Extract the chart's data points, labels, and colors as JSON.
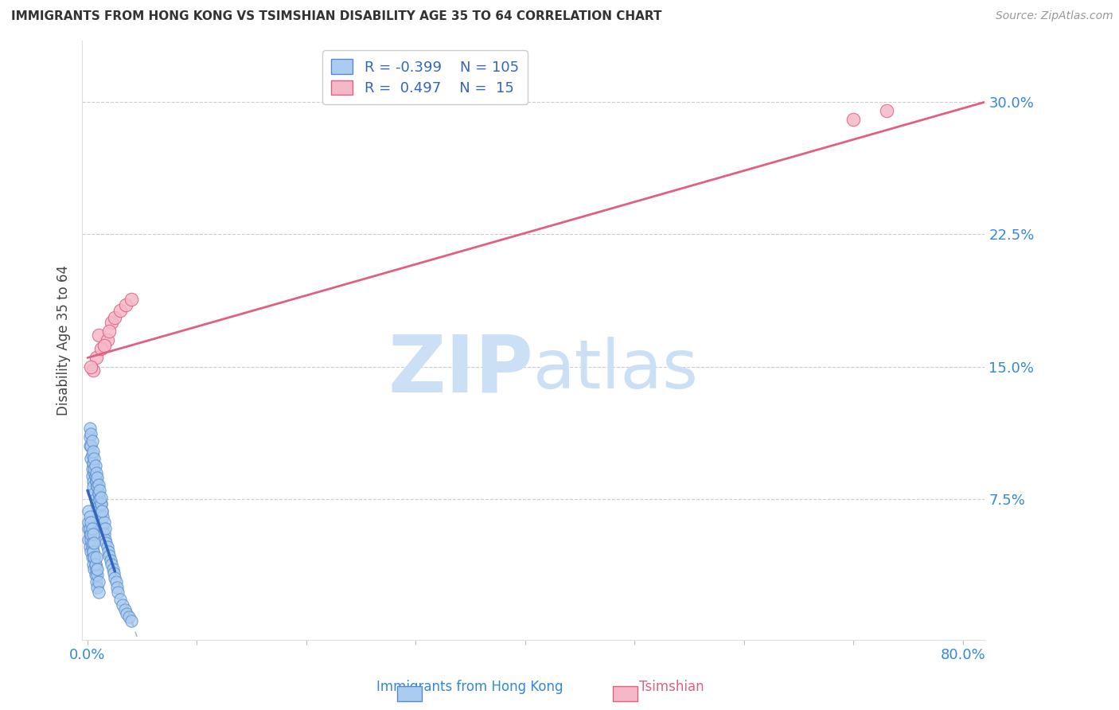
{
  "title": "IMMIGRANTS FROM HONG KONG VS TSIMSHIAN DISABILITY AGE 35 TO 64 CORRELATION CHART",
  "source": "Source: ZipAtlas.com",
  "xlabel_hk": "Immigrants from Hong Kong",
  "xlabel_ts": "Tsimshian",
  "ylabel": "Disability Age 35 to 64",
  "xlim": [
    -0.005,
    0.82
  ],
  "ylim": [
    -0.005,
    0.335
  ],
  "yticks_right": [
    0.075,
    0.15,
    0.225,
    0.3
  ],
  "ytick_labels_right": [
    "7.5%",
    "15.0%",
    "22.5%",
    "30.0%"
  ],
  "legend_r_hk": "-0.399",
  "legend_n_hk": "105",
  "legend_r_ts": "0.497",
  "legend_n_ts": "15",
  "color_hk_fill": "#aaccf0",
  "color_hk_edge": "#5588cc",
  "color_ts_fill": "#f5b8c8",
  "color_ts_edge": "#e06080",
  "color_hk_line": "#3366bb",
  "color_ts_line": "#e06080",
  "watermark_zip": "ZIP",
  "watermark_atlas": "atlas",
  "watermark_color": "#cce0f5",
  "hk_x": [
    0.002,
    0.003,
    0.004,
    0.004,
    0.005,
    0.005,
    0.005,
    0.006,
    0.006,
    0.007,
    0.007,
    0.008,
    0.008,
    0.009,
    0.009,
    0.01,
    0.01,
    0.011,
    0.011,
    0.012,
    0.012,
    0.013,
    0.013,
    0.014,
    0.014,
    0.015,
    0.015,
    0.016,
    0.016,
    0.017,
    0.018,
    0.019,
    0.02,
    0.021,
    0.022,
    0.023,
    0.024,
    0.025,
    0.026,
    0.027,
    0.028,
    0.03,
    0.032,
    0.034,
    0.036,
    0.038,
    0.04,
    0.002,
    0.002,
    0.003,
    0.003,
    0.004,
    0.004,
    0.005,
    0.005,
    0.006,
    0.006,
    0.007,
    0.007,
    0.008,
    0.008,
    0.009,
    0.009,
    0.01,
    0.01,
    0.011,
    0.011,
    0.012,
    0.012,
    0.013,
    0.001,
    0.001,
    0.002,
    0.002,
    0.003,
    0.003,
    0.004,
    0.004,
    0.005,
    0.005,
    0.006,
    0.006,
    0.007,
    0.007,
    0.008,
    0.008,
    0.009,
    0.009,
    0.01,
    0.01,
    0.001,
    0.001,
    0.002,
    0.002,
    0.003,
    0.003,
    0.004,
    0.004,
    0.005,
    0.005,
    0.006,
    0.006,
    0.007,
    0.008,
    0.009
  ],
  "hk_y": [
    0.105,
    0.098,
    0.092,
    0.088,
    0.085,
    0.082,
    0.095,
    0.078,
    0.09,
    0.075,
    0.088,
    0.072,
    0.085,
    0.07,
    0.082,
    0.068,
    0.078,
    0.065,
    0.075,
    0.062,
    0.072,
    0.06,
    0.068,
    0.058,
    0.065,
    0.055,
    0.062,
    0.052,
    0.058,
    0.05,
    0.048,
    0.045,
    0.043,
    0.04,
    0.038,
    0.035,
    0.033,
    0.03,
    0.028,
    0.025,
    0.022,
    0.018,
    0.015,
    0.012,
    0.01,
    0.008,
    0.006,
    0.11,
    0.115,
    0.105,
    0.112,
    0.1,
    0.108,
    0.095,
    0.102,
    0.092,
    0.098,
    0.088,
    0.094,
    0.085,
    0.09,
    0.082,
    0.087,
    0.078,
    0.083,
    0.075,
    0.08,
    0.072,
    0.076,
    0.068,
    0.058,
    0.052,
    0.055,
    0.048,
    0.052,
    0.045,
    0.048,
    0.042,
    0.045,
    0.038,
    0.042,
    0.035,
    0.038,
    0.032,
    0.035,
    0.028,
    0.032,
    0.025,
    0.028,
    0.022,
    0.062,
    0.068,
    0.058,
    0.065,
    0.055,
    0.062,
    0.05,
    0.058,
    0.045,
    0.055,
    0.042,
    0.05,
    0.038,
    0.042,
    0.035
  ],
  "ts_x": [
    0.01,
    0.022,
    0.008,
    0.018,
    0.012,
    0.025,
    0.005,
    0.015,
    0.02,
    0.03,
    0.7,
    0.73,
    0.003,
    0.035,
    0.04
  ],
  "ts_y": [
    0.168,
    0.175,
    0.155,
    0.165,
    0.16,
    0.178,
    0.148,
    0.162,
    0.17,
    0.182,
    0.29,
    0.295,
    0.15,
    0.185,
    0.188
  ],
  "ts_line_x0": 0.0,
  "ts_line_x1": 0.82,
  "ts_line_y0": 0.155,
  "ts_line_y1": 0.3,
  "hk_line_solid_x0": 0.0,
  "hk_line_solid_x1": 0.025,
  "hk_line_dash_x0": 0.025,
  "hk_line_dash_x1": 0.25
}
